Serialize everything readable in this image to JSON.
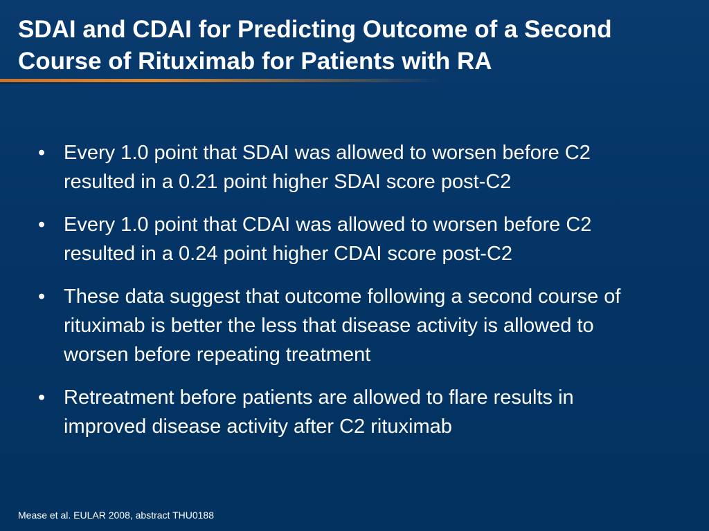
{
  "slide": {
    "title": "SDAI and CDAI for Predicting Outcome of a Second Course of Rituximab for Patients with RA",
    "bullet_symbol": "•",
    "bullets": [
      {
        "text": "Every 1.0 point that SDAI was allowed to worsen before C2 resulted in a 0.21 point higher SDAI score post-C2"
      },
      {
        "text": "Every 1.0 point that CDAI was allowed to worsen before C2 resulted in a 0.24 point higher CDAI score post-C2"
      },
      {
        "text": "These data suggest that outcome following a second course of rituximab is better the less that disease activity is allowed to worsen before repeating treatment"
      },
      {
        "text": "Retreatment before patients are allowed to flare results in improved disease activity after C2 rituximab"
      }
    ],
    "footnote": "Mease et al. EULAR 2008, abstract THU0188"
  },
  "colors": {
    "background": "#003366",
    "title_text": "#ffffff",
    "body_text": "#ffffff",
    "accent_rule": "#d98a3a"
  }
}
